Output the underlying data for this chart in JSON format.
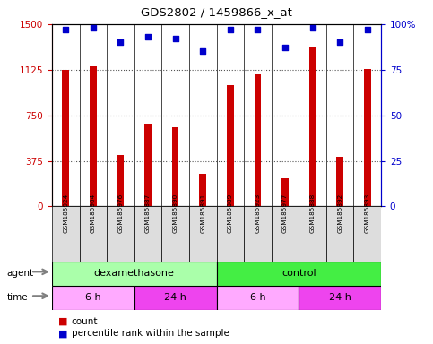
{
  "title": "GDS2802 / 1459866_x_at",
  "samples": [
    "GSM185924",
    "GSM185964",
    "GSM185976",
    "GSM185887",
    "GSM185890",
    "GSM185891",
    "GSM185889",
    "GSM185923",
    "GSM185977",
    "GSM185888",
    "GSM185892",
    "GSM185893"
  ],
  "counts": [
    1125,
    1150,
    420,
    680,
    650,
    270,
    1000,
    1090,
    230,
    1310,
    410,
    1130
  ],
  "percentiles": [
    97,
    98,
    90,
    93,
    92,
    85,
    97,
    97,
    87,
    98,
    90,
    97
  ],
  "bar_color": "#cc0000",
  "dot_color": "#0000cc",
  "ylim_left": [
    0,
    1500
  ],
  "ylim_right": [
    0,
    100
  ],
  "yticks_left": [
    0,
    375,
    750,
    1125,
    1500
  ],
  "yticks_right": [
    0,
    25,
    50,
    75,
    100
  ],
  "agent_groups": [
    {
      "label": "dexamethasone",
      "start": 0,
      "end": 6,
      "color": "#aaffaa"
    },
    {
      "label": "control",
      "start": 6,
      "end": 12,
      "color": "#44ee44"
    }
  ],
  "time_groups": [
    {
      "label": "6 h",
      "start": 0,
      "end": 3,
      "color": "#ffaaff"
    },
    {
      "label": "24 h",
      "start": 3,
      "end": 6,
      "color": "#ee44ee"
    },
    {
      "label": "6 h",
      "start": 6,
      "end": 9,
      "color": "#ffaaff"
    },
    {
      "label": "24 h",
      "start": 9,
      "end": 12,
      "color": "#ee44ee"
    }
  ],
  "legend_count_label": "count",
  "legend_pct_label": "percentile rank within the sample",
  "agent_label": "agent",
  "time_label": "time",
  "grid_color": "#555555",
  "background_color": "#ffffff",
  "tick_area_color": "#dddddd",
  "bar_width": 0.25
}
